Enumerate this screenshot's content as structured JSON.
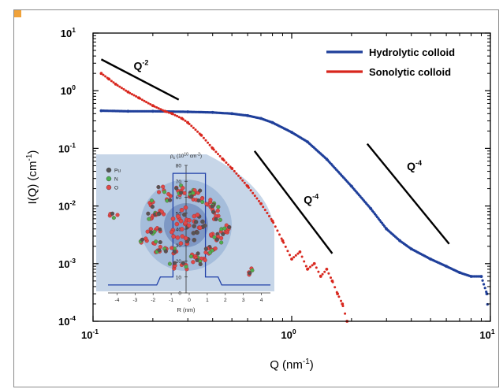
{
  "chart_data": {
    "type": "scatter",
    "xscale": "log",
    "yscale": "log",
    "xlim": [
      0.1,
      10
    ],
    "ylim": [
      0.0001,
      10
    ],
    "xlabel": {
      "base": "Q (nm",
      "sup": "-1",
      "tail": ")"
    },
    "ylabel": {
      "base": "I(Q) (cm",
      "sup": "-1",
      "tail": ")"
    },
    "xticks": [
      {
        "value": 0.1,
        "base": "10",
        "exp": "-1"
      },
      {
        "value": 1,
        "base": "10",
        "exp": "0"
      },
      {
        "value": 10,
        "base": "10",
        "exp": "1"
      }
    ],
    "yticks": [
      {
        "value": 10,
        "base": "10",
        "exp": "1"
      },
      {
        "value": 1,
        "base": "10",
        "exp": "0"
      },
      {
        "value": 0.1,
        "base": "10",
        "exp": "-1"
      },
      {
        "value": 0.01,
        "base": "10",
        "exp": "-2"
      },
      {
        "value": 0.001,
        "base": "10",
        "exp": "-3"
      },
      {
        "value": 0.0001,
        "base": "10",
        "exp": "-4"
      }
    ],
    "legend_position": "top-right",
    "series": [
      {
        "name": "Hydrolytic colloid",
        "color": "#1f3f9a",
        "x": [
          0.11,
          0.15,
          0.2,
          0.3,
          0.4,
          0.5,
          0.6,
          0.7,
          0.8,
          1.0,
          1.2,
          1.5,
          2.0,
          2.5,
          3.0,
          3.5,
          4.0,
          5.0,
          6.0,
          7.0,
          8.0,
          9.0,
          9.6,
          9.8
        ],
        "y": [
          0.45,
          0.44,
          0.44,
          0.43,
          0.42,
          0.4,
          0.37,
          0.33,
          0.28,
          0.19,
          0.13,
          0.065,
          0.022,
          0.009,
          0.004,
          0.0025,
          0.0018,
          0.0012,
          0.0009,
          0.0007,
          0.0006,
          0.0006,
          0.0003,
          8e-05
        ]
      },
      {
        "name": "Sonolytic colloid",
        "color": "#d8261d",
        "x": [
          0.11,
          0.12,
          0.13,
          0.15,
          0.17,
          0.2,
          0.23,
          0.25,
          0.28,
          0.3,
          0.35,
          0.4,
          0.45,
          0.5,
          0.6,
          0.7,
          0.8,
          0.9,
          1.0,
          1.1,
          1.2,
          1.3,
          1.4,
          1.5,
          1.6,
          1.7,
          1.8,
          1.9
        ],
        "y": [
          2.0,
          1.6,
          1.3,
          0.95,
          0.75,
          0.55,
          0.44,
          0.4,
          0.33,
          0.28,
          0.17,
          0.1,
          0.065,
          0.045,
          0.022,
          0.011,
          0.0055,
          0.0025,
          0.0012,
          0.0016,
          0.0008,
          0.001,
          0.0006,
          0.0008,
          0.0005,
          0.0003,
          0.0002,
          0.0001
        ]
      }
    ],
    "slope_annotations": [
      {
        "base": "Q",
        "exp": "-2",
        "x": [
          0.11,
          0.27
        ],
        "y": [
          3.5,
          0.7
        ],
        "label_x": 0.16,
        "label_y": 2.3
      },
      {
        "base": "Q",
        "exp": "-4",
        "x": [
          0.65,
          1.6
        ],
        "y": [
          0.09,
          0.0015
        ],
        "label_x": 1.15,
        "label_y": 0.011
      },
      {
        "base": "Q",
        "exp": "-4",
        "x": [
          2.4,
          6.2
        ],
        "y": [
          0.12,
          0.0022
        ],
        "label_x": 3.8,
        "label_y": 0.042
      }
    ],
    "inset": {
      "title_base": "ρ",
      "title_sub": "c",
      "title_tail": " (10",
      "title_sup": "10",
      "title_unit": " cm",
      "title_sup2": "-2",
      "title_end": ")",
      "xlabel": "R (nm)",
      "xticks": [
        "-4",
        "-3",
        "-2",
        "-1",
        "0",
        "1",
        "2",
        "3",
        "4"
      ],
      "yticks": [
        "0",
        "10",
        "20",
        "30",
        "40",
        "50",
        "60",
        "70",
        "80"
      ],
      "legend": [
        {
          "label": "Pu",
          "color": "#555555"
        },
        {
          "label": "N",
          "color": "#4caf50"
        },
        {
          "label": "O",
          "color": "#e04848"
        }
      ]
    }
  }
}
